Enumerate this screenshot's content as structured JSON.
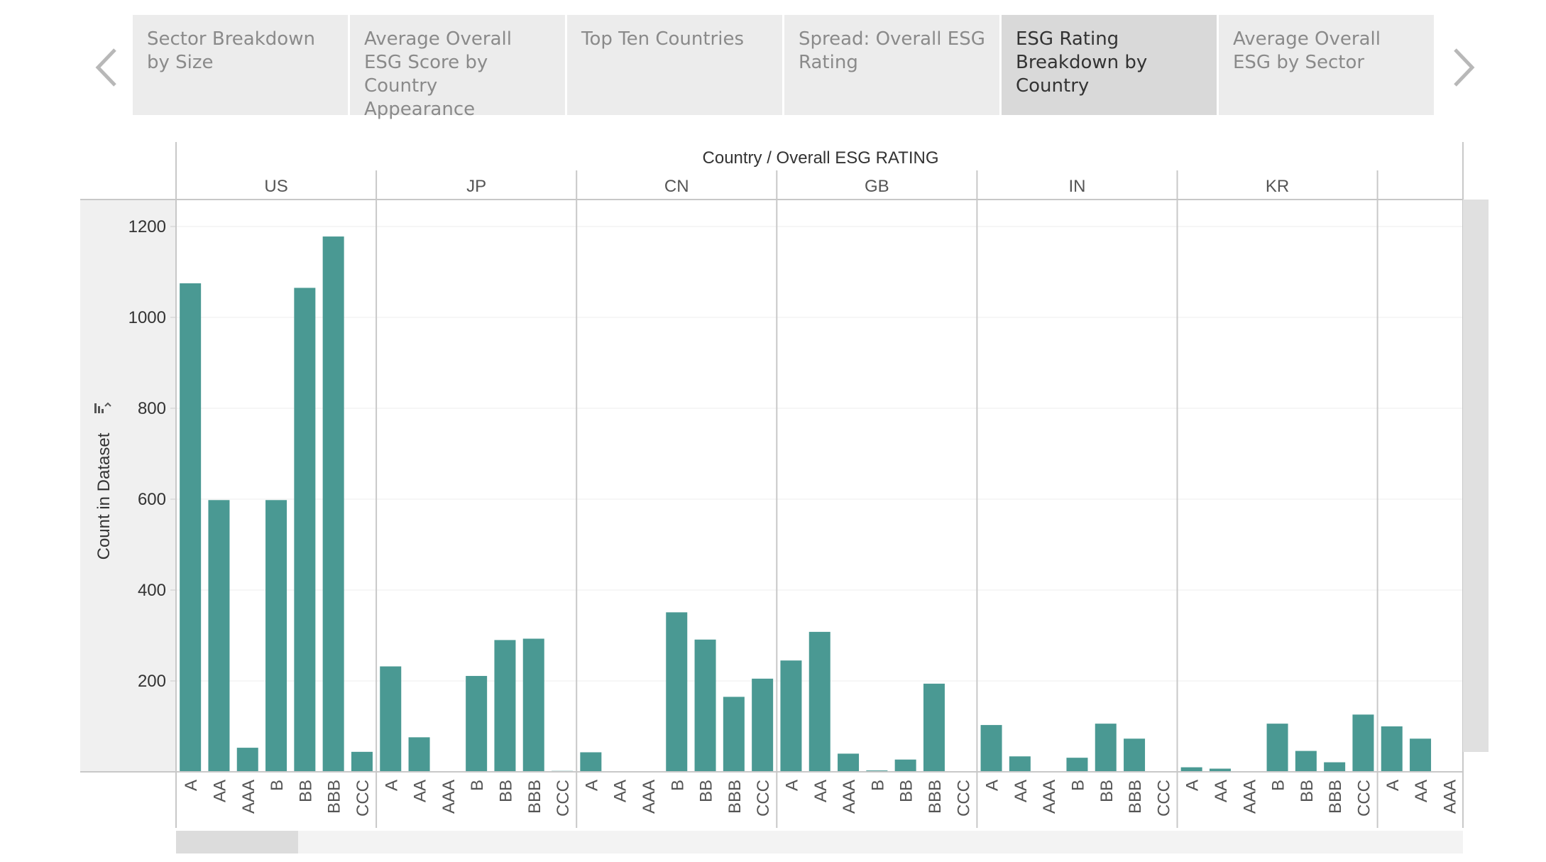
{
  "tabs": [
    {
      "label": "Sector Breakdown by Size",
      "active": false
    },
    {
      "label": "Average Overall ESG Score by Country Appearance",
      "active": false
    },
    {
      "label": "Top Ten Countries",
      "active": false
    },
    {
      "label": "Spread: Overall ESG Rating",
      "active": false
    },
    {
      "label": "ESG Rating Breakdown by Country",
      "active": true
    },
    {
      "label": "Average Overall ESG by Sector",
      "active": false
    }
  ],
  "icons": {
    "left_arrow": "chevron-left-icon",
    "right_arrow": "chevron-right-icon",
    "sort": "sort-icon"
  },
  "chart_data": {
    "type": "bar",
    "title": "Country / Overall ESG RATING",
    "ylabel": "Count in Dataset",
    "xlabel": "",
    "ylim": [
      0,
      1200
    ],
    "yticks": [
      "200",
      "400",
      "600",
      "800",
      "1000",
      "1200"
    ],
    "grid": true,
    "bar_color": "#4a9993",
    "groups": [
      {
        "country": "US",
        "categories": [
          "A",
          "AA",
          "AAA",
          "B",
          "BB",
          "BBB",
          "CCC"
        ],
        "values": [
          1075,
          598,
          53,
          598,
          1065,
          1178,
          44
        ]
      },
      {
        "country": "JP",
        "categories": [
          "A",
          "AA",
          "AAA",
          "B",
          "BB",
          "BBB",
          "CCC"
        ],
        "values": [
          232,
          76,
          0,
          211,
          290,
          293,
          2
        ]
      },
      {
        "country": "CN",
        "categories": [
          "A",
          "AA",
          "AAA",
          "B",
          "BB",
          "BBB",
          "CCC"
        ],
        "values": [
          43,
          0,
          0,
          351,
          291,
          165,
          205
        ]
      },
      {
        "country": "GB",
        "categories": [
          "A",
          "AA",
          "AAA",
          "B",
          "BB",
          "BBB",
          "CCC"
        ],
        "values": [
          245,
          308,
          40,
          3,
          27,
          194,
          0
        ]
      },
      {
        "country": "IN",
        "categories": [
          "A",
          "AA",
          "AAA",
          "B",
          "BB",
          "BBB",
          "CCC"
        ],
        "values": [
          103,
          34,
          0,
          31,
          106,
          73,
          0
        ]
      },
      {
        "country": "KR",
        "categories": [
          "A",
          "AA",
          "AAA",
          "B",
          "BB",
          "BBB",
          "CCC"
        ],
        "values": [
          10,
          7,
          0,
          106,
          46,
          21,
          126
        ]
      },
      {
        "country": "",
        "categories": [
          "A",
          "AA",
          "AAA"
        ],
        "values": [
          100,
          73,
          0
        ]
      }
    ]
  }
}
